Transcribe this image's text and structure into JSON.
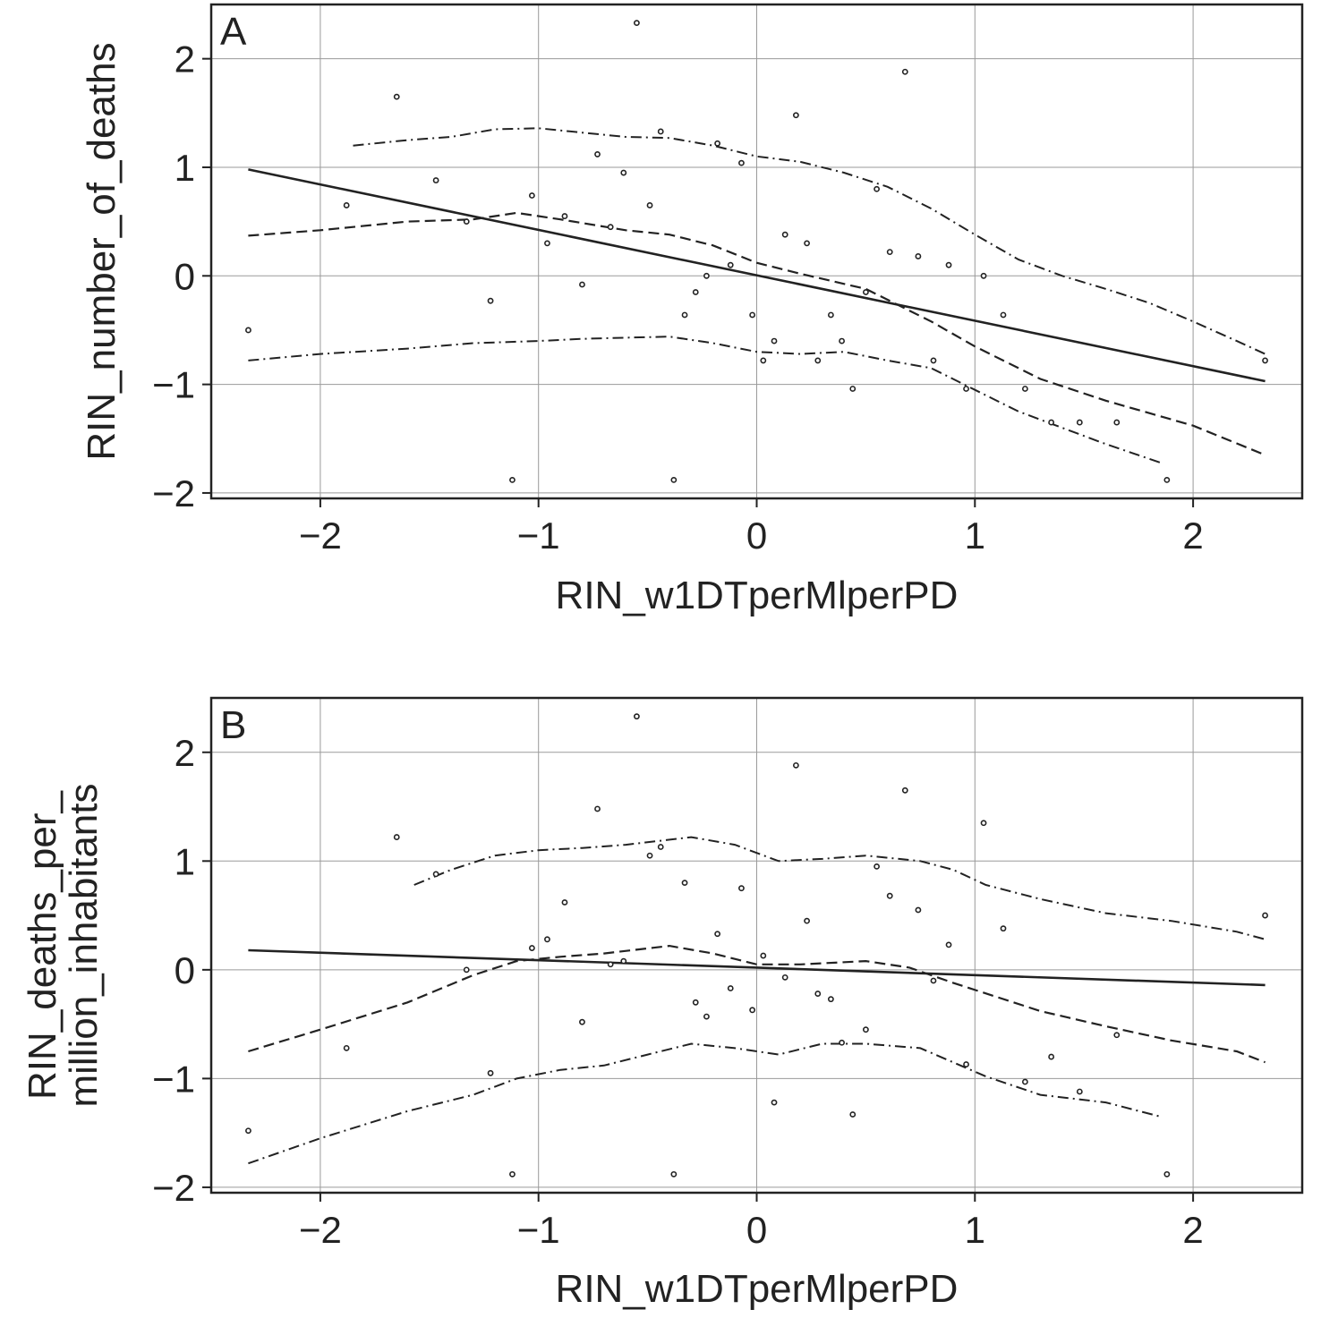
{
  "chart_data": [
    {
      "panel": "A",
      "type": "scatter",
      "xlabel": "RIN_w1DTperMlperPD",
      "ylabel_lines": [
        "RIN_number_of_deaths"
      ],
      "xlim": [
        -2.5,
        2.5
      ],
      "ylim": [
        -2.05,
        2.5
      ],
      "xticks": [
        -2,
        -1,
        0,
        1,
        2
      ],
      "yticks": [
        -2,
        -1,
        0,
        1,
        2
      ],
      "xtick_labels": [
        "−2",
        "−1",
        "0",
        "1",
        "2"
      ],
      "ytick_labels": [
        "−2",
        "−1",
        "0",
        "1",
        "2"
      ],
      "grid": true,
      "points": {
        "x": [
          -2.33,
          -1.88,
          -1.65,
          -1.47,
          -1.33,
          -1.22,
          -1.12,
          -1.03,
          -0.96,
          -0.88,
          -0.8,
          -0.73,
          -0.67,
          -0.61,
          -0.55,
          -0.49,
          -0.44,
          -0.38,
          -0.33,
          -0.28,
          -0.23,
          -0.18,
          -0.12,
          -0.07,
          -0.02,
          0.03,
          0.08,
          0.13,
          0.18,
          0.23,
          0.28,
          0.34,
          0.39,
          0.44,
          0.5,
          0.55,
          0.61,
          0.68,
          0.74,
          0.81,
          0.88,
          0.96,
          1.04,
          1.13,
          1.23,
          1.35,
          1.48,
          1.65,
          1.88,
          2.33
        ],
        "y": [
          -0.5,
          0.65,
          1.65,
          0.88,
          0.5,
          -0.23,
          -1.88,
          0.74,
          0.3,
          0.55,
          -0.08,
          1.12,
          0.45,
          0.95,
          2.33,
          0.65,
          1.33,
          -1.88,
          -0.36,
          -0.15,
          0.0,
          1.22,
          0.1,
          1.04,
          -0.36,
          -0.78,
          -0.6,
          0.38,
          1.48,
          0.3,
          -0.78,
          -0.36,
          -0.6,
          -1.04,
          -0.15,
          0.8,
          0.22,
          1.88,
          0.18,
          -0.78,
          0.1,
          -1.04,
          0.0,
          -0.36,
          -1.04,
          -1.35,
          -1.35,
          -1.35,
          -1.88,
          -0.78
        ]
      },
      "fit_line": {
        "x": [
          -2.33,
          2.33
        ],
        "y": [
          0.98,
          -0.97
        ]
      },
      "smooth": {
        "x": [
          -2.33,
          -2.0,
          -1.6,
          -1.3,
          -1.1,
          -0.9,
          -0.6,
          -0.4,
          -0.2,
          0.0,
          0.2,
          0.5,
          0.8,
          1.0,
          1.3,
          1.6,
          2.0,
          2.33
        ],
        "y": [
          0.37,
          0.42,
          0.5,
          0.52,
          0.58,
          0.52,
          0.42,
          0.38,
          0.28,
          0.12,
          0.02,
          -0.12,
          -0.42,
          -0.65,
          -0.95,
          -1.15,
          -1.38,
          -1.65
        ]
      },
      "band_upper": {
        "x": [
          -1.85,
          -1.6,
          -1.4,
          -1.2,
          -1.0,
          -0.8,
          -0.6,
          -0.4,
          -0.2,
          0.0,
          0.2,
          0.4,
          0.6,
          0.8,
          1.0,
          1.2,
          1.4,
          1.6,
          1.8,
          2.0,
          2.2,
          2.33
        ],
        "y": [
          1.2,
          1.25,
          1.28,
          1.35,
          1.36,
          1.32,
          1.28,
          1.27,
          1.2,
          1.1,
          1.05,
          0.95,
          0.82,
          0.62,
          0.38,
          0.15,
          0.0,
          -0.12,
          -0.25,
          -0.42,
          -0.6,
          -0.72
        ]
      },
      "band_lower": {
        "x": [
          -2.33,
          -2.0,
          -1.6,
          -1.3,
          -1.0,
          -0.8,
          -0.6,
          -0.4,
          -0.2,
          0.0,
          0.2,
          0.4,
          0.6,
          0.8,
          1.0,
          1.2,
          1.4,
          1.6,
          1.85
        ],
        "y": [
          -0.78,
          -0.72,
          -0.67,
          -0.62,
          -0.6,
          -0.58,
          -0.57,
          -0.56,
          -0.62,
          -0.7,
          -0.72,
          -0.7,
          -0.78,
          -0.85,
          -1.05,
          -1.25,
          -1.4,
          -1.55,
          -1.72
        ]
      }
    },
    {
      "panel": "B",
      "type": "scatter",
      "xlabel": "RIN_w1DTperMlperPD",
      "ylabel_lines": [
        "RIN_deaths_per_",
        "million_inhabitants"
      ],
      "xlim": [
        -2.5,
        2.5
      ],
      "ylim": [
        -2.05,
        2.5
      ],
      "xticks": [
        -2,
        -1,
        0,
        1,
        2
      ],
      "yticks": [
        -2,
        -1,
        0,
        1,
        2
      ],
      "xtick_labels": [
        "−2",
        "−1",
        "0",
        "1",
        "2"
      ],
      "ytick_labels": [
        "−2",
        "−1",
        "0",
        "1",
        "2"
      ],
      "grid": true,
      "points": {
        "x": [
          -2.33,
          -1.88,
          -1.65,
          -1.47,
          -1.33,
          -1.22,
          -1.12,
          -1.03,
          -0.96,
          -0.88,
          -0.8,
          -0.73,
          -0.67,
          -0.61,
          -0.55,
          -0.49,
          -0.44,
          -0.38,
          -0.33,
          -0.28,
          -0.23,
          -0.18,
          -0.12,
          -0.07,
          -0.02,
          0.03,
          0.08,
          0.13,
          0.18,
          0.23,
          0.28,
          0.34,
          0.39,
          0.44,
          0.5,
          0.55,
          0.61,
          0.68,
          0.74,
          0.81,
          0.88,
          0.96,
          1.04,
          1.13,
          1.23,
          1.35,
          1.48,
          1.65,
          1.88,
          2.33
        ],
        "y": [
          -1.48,
          -0.72,
          1.22,
          0.88,
          0.0,
          -0.95,
          -1.88,
          0.2,
          0.28,
          0.62,
          -0.48,
          1.48,
          0.05,
          0.08,
          2.33,
          1.05,
          1.13,
          -1.88,
          0.8,
          -0.3,
          -0.43,
          0.33,
          -0.17,
          0.75,
          -0.37,
          0.13,
          -1.22,
          -0.07,
          1.88,
          0.45,
          -0.22,
          -0.27,
          -0.67,
          -1.33,
          -0.55,
          0.95,
          0.68,
          1.65,
          0.55,
          -0.1,
          0.23,
          -0.87,
          1.35,
          0.38,
          -1.03,
          -0.8,
          -1.12,
          -0.6,
          -1.88,
          0.5
        ]
      },
      "fit_line": {
        "x": [
          -2.33,
          2.33
        ],
        "y": [
          0.18,
          -0.14
        ]
      },
      "smooth": {
        "x": [
          -2.33,
          -2.0,
          -1.6,
          -1.3,
          -1.1,
          -0.9,
          -0.7,
          -0.4,
          -0.2,
          0.0,
          0.2,
          0.5,
          0.7,
          0.9,
          1.1,
          1.3,
          1.6,
          1.9,
          2.2,
          2.33
        ],
        "y": [
          -0.75,
          -0.55,
          -0.3,
          -0.05,
          0.08,
          0.12,
          0.15,
          0.22,
          0.15,
          0.05,
          0.05,
          0.08,
          0.02,
          -0.12,
          -0.25,
          -0.38,
          -0.52,
          -0.65,
          -0.75,
          -0.85
        ]
      },
      "band_upper": {
        "x": [
          -1.57,
          -1.4,
          -1.2,
          -1.0,
          -0.8,
          -0.6,
          -0.3,
          -0.1,
          0.1,
          0.3,
          0.5,
          0.75,
          0.9,
          1.05,
          1.3,
          1.6,
          1.9,
          2.2,
          2.33
        ],
        "y": [
          0.78,
          0.92,
          1.05,
          1.1,
          1.12,
          1.15,
          1.22,
          1.15,
          1.0,
          1.02,
          1.05,
          1.0,
          0.92,
          0.78,
          0.65,
          0.52,
          0.45,
          0.35,
          0.28
        ]
      },
      "band_lower": {
        "x": [
          -2.33,
          -2.0,
          -1.6,
          -1.3,
          -1.1,
          -0.9,
          -0.7,
          -0.5,
          -0.3,
          -0.1,
          0.1,
          0.3,
          0.5,
          0.75,
          0.9,
          1.05,
          1.3,
          1.6,
          1.85
        ],
        "y": [
          -1.78,
          -1.55,
          -1.3,
          -1.15,
          -1.0,
          -0.92,
          -0.88,
          -0.78,
          -0.68,
          -0.72,
          -0.78,
          -0.68,
          -0.68,
          -0.72,
          -0.85,
          -0.98,
          -1.15,
          -1.22,
          -1.35
        ]
      }
    }
  ]
}
